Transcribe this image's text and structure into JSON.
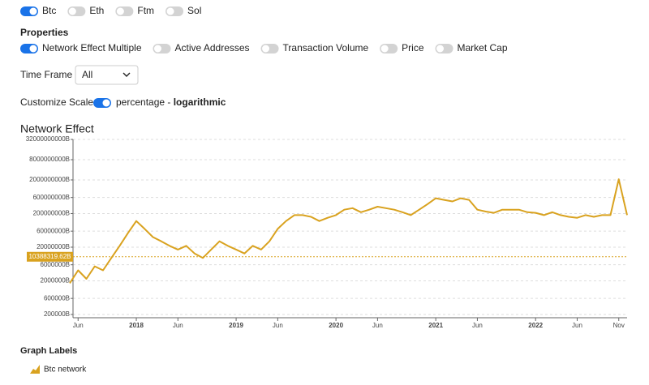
{
  "assets": {
    "toggles": [
      {
        "label": "Btc",
        "on": true
      },
      {
        "label": "Eth",
        "on": false
      },
      {
        "label": "Ftm",
        "on": false
      },
      {
        "label": "Sol",
        "on": false
      }
    ]
  },
  "properties": {
    "title": "Properties",
    "toggles": [
      {
        "label": "Network Effect Multiple",
        "on": true
      },
      {
        "label": "Active Addresses",
        "on": false
      },
      {
        "label": "Transaction Volume",
        "on": false
      },
      {
        "label": "Price",
        "on": false
      },
      {
        "label": "Market Cap",
        "on": false
      }
    ]
  },
  "time_frame": {
    "label": "Time Frame",
    "value": "All"
  },
  "scale": {
    "label": "Customize Scale",
    "on": true,
    "text": "percentage - ",
    "emphasis": "logarithmic"
  },
  "chart_data": {
    "type": "line",
    "title": "Network Effect",
    "log_scale": true,
    "grid": true,
    "x": [
      "2017-05",
      "2017-06",
      "2017-07",
      "2017-08",
      "2017-09",
      "2017-10",
      "2017-11",
      "2017-12",
      "2018-01",
      "2018-02",
      "2018-03",
      "2018-04",
      "2018-05",
      "2018-06",
      "2018-07",
      "2018-08",
      "2018-09",
      "2018-10",
      "2018-11",
      "2018-12",
      "2019-01",
      "2019-02",
      "2019-03",
      "2019-04",
      "2019-05",
      "2019-06",
      "2019-07",
      "2019-08",
      "2019-09",
      "2019-10",
      "2019-11",
      "2019-12",
      "2020-01",
      "2020-02",
      "2020-03",
      "2020-04",
      "2020-05",
      "2020-06",
      "2020-07",
      "2020-08",
      "2020-09",
      "2020-10",
      "2020-11",
      "2020-12",
      "2021-01",
      "2021-02",
      "2021-03",
      "2021-04",
      "2021-05",
      "2021-06",
      "2021-07",
      "2021-08",
      "2021-09",
      "2021-10",
      "2021-11",
      "2021-12",
      "2022-01",
      "2022-02",
      "2022-03",
      "2022-04",
      "2022-05",
      "2022-06",
      "2022-07",
      "2022-08",
      "2022-09",
      "2022-10",
      "2022-11",
      "2022-12"
    ],
    "series": [
      {
        "name": "Btc network",
        "color": "#d9a21f",
        "values": [
          1700000,
          4100000,
          2300000,
          5400000,
          4100000,
          9600000,
          22000000,
          53000000,
          120000000,
          70000000,
          40000000,
          30000000,
          22000000,
          17000000,
          22000000,
          13000000,
          9600000,
          17000000,
          30000000,
          22000000,
          17000000,
          13000000,
          22000000,
          17000000,
          30000000,
          70000000,
          120000000,
          180000000,
          180000000,
          160000000,
          120000000,
          150000000,
          180000000,
          260000000,
          290000000,
          220000000,
          260000000,
          320000000,
          290000000,
          260000000,
          220000000,
          180000000,
          260000000,
          380000000,
          570000000,
          510000000,
          460000000,
          570000000,
          510000000,
          260000000,
          230000000,
          210000000,
          260000000,
          260000000,
          260000000,
          220000000,
          210000000,
          180000000,
          220000000,
          180000000,
          160000000,
          150000000,
          180000000,
          160000000,
          180000000,
          180000000,
          2100000000,
          180000000
        ]
      }
    ],
    "xlim": [
      "2017-05",
      "2022-12"
    ],
    "xticks": [
      {
        "value": "2017-06",
        "label": "Jun"
      },
      {
        "value": "2018-01",
        "label": "2018"
      },
      {
        "value": "2018-06",
        "label": "Jun"
      },
      {
        "value": "2019-01",
        "label": "2019"
      },
      {
        "value": "2019-06",
        "label": "Jun"
      },
      {
        "value": "2020-01",
        "label": "2020"
      },
      {
        "value": "2020-06",
        "label": "Jun"
      },
      {
        "value": "2021-01",
        "label": "2021"
      },
      {
        "value": "2021-06",
        "label": "Jun"
      },
      {
        "value": "2022-01",
        "label": "2022"
      },
      {
        "value": "2022-06",
        "label": "Jun"
      },
      {
        "value": "2022-11",
        "label": "Nov"
      }
    ],
    "ylim": [
      160000,
      32000000000
    ],
    "yticks": [
      {
        "value": 200000,
        "label": "200000B"
      },
      {
        "value": 600000,
        "label": "600000B"
      },
      {
        "value": 2000000,
        "label": "2000000B"
      },
      {
        "value": 6000000,
        "label": "6000000B"
      },
      {
        "value": 20000000,
        "label": "20000000B"
      },
      {
        "value": 60000000,
        "label": "60000000B"
      },
      {
        "value": 200000000,
        "label": "200000000B"
      },
      {
        "value": 600000000,
        "label": "600000000B"
      },
      {
        "value": 2000000000,
        "label": "2000000000B"
      },
      {
        "value": 8000000000,
        "label": "8000000000B"
      },
      {
        "value": 32000000000,
        "label": "32000000000B"
      }
    ],
    "crosshair": {
      "value": 10388319.62,
      "label": "10388319.62B"
    }
  },
  "legend": {
    "title": "Graph Labels"
  }
}
